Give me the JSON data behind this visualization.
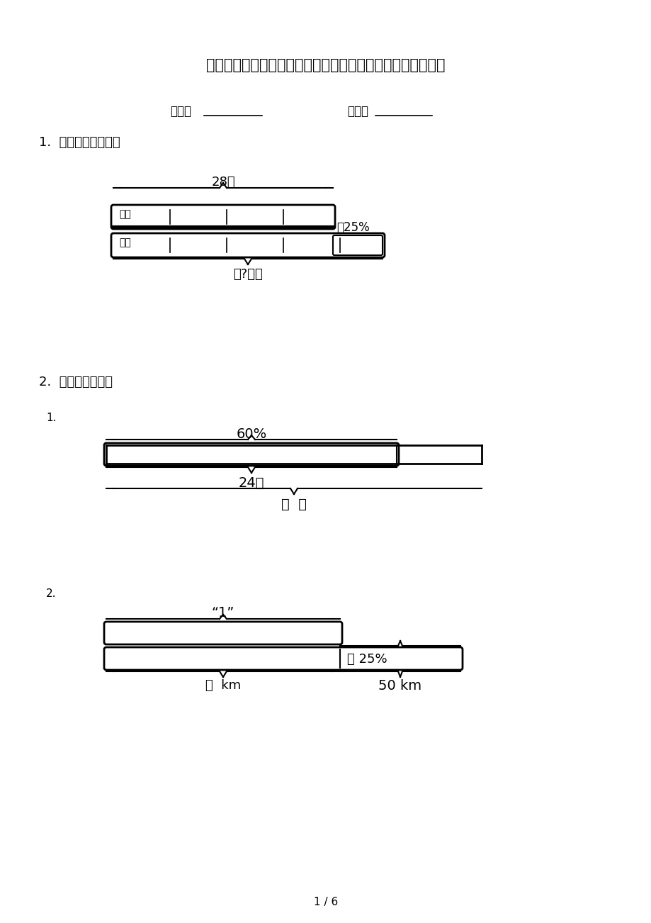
{
  "title": "最新六年级数学上册看图列方程计算复习专项针对练习冀教版",
  "bg_color": "#ffffff",
  "text_color": "#000000",
  "label_class": "班级：",
  "label_name": "姓名：",
  "section1_title": "1.  只列式，不计算。",
  "section2_title": "2.  看图列式计算。",
  "page_num": "1 / 6",
  "diagram1": {
    "label_28": "28只",
    "label_ji": "鸡：",
    "label_ya": "鸭：",
    "label_25": "多25%",
    "label_q": "（?）只"
  },
  "diagram2": {
    "sub1_num": "1.",
    "label_60": "60%",
    "label_24": "24个",
    "label_q": "？  个"
  },
  "diagram3": {
    "sub2_num": "2.",
    "label_1": "“1”",
    "label_q": "？  km",
    "label_25": "多 25%",
    "label_50": "50 km"
  }
}
